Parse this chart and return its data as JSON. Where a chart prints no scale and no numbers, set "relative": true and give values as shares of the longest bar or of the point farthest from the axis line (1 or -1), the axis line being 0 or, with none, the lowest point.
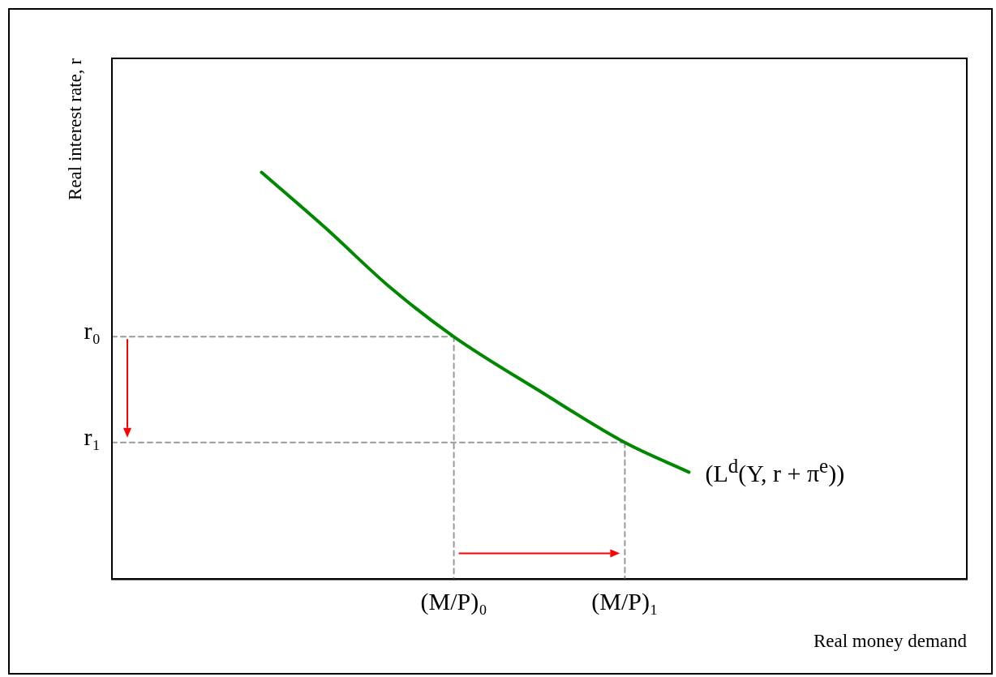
{
  "chart_data": {
    "type": "line",
    "relative": true,
    "xlabel": "Real money demand",
    "ylabel": "Real interest rate, r",
    "categories": [
      null,
      null,
      null,
      null,
      null,
      null,
      null,
      null,
      null,
      null,
      null,
      null,
      null,
      null,
      null,
      null,
      "(M/P)₀",
      null,
      null,
      null,
      null,
      null,
      null,
      null,
      "(M/P)₁",
      null,
      null,
      null,
      null,
      null,
      null,
      null,
      null,
      null,
      null,
      null,
      null,
      null,
      null,
      null,
      null
    ],
    "grid": false,
    "legend": false,
    "marker": "none",
    "series": [
      {
        "color": "#008800",
        "line_style": "solid",
        "values": [
          null,
          null,
          null,
          null,
          null,
          null,
          null,
          1,
          null,
          null,
          0.863,
          null,
          null,
          0.718,
          null,
          null,
          0.596,
          null,
          null,
          null,
          0.463,
          null,
          null,
          null,
          0.336,
          null,
          null,
          0.263,
          null,
          null,
          null,
          null,
          null,
          null,
          null,
          null,
          null,
          null,
          null,
          null,
          null
        ]
      },
      {
        "color": "#999999",
        "line_style": "dashed",
        "values": [
          0.596,
          0.596,
          0.596,
          0.596,
          0.596,
          0.596,
          0.596,
          0.596,
          0.596,
          0.596,
          0.596,
          0.596,
          0.596,
          0.596,
          0.596,
          0.596,
          0.596,
          null,
          null,
          null,
          null,
          null,
          null,
          null,
          null,
          null,
          null,
          null,
          null,
          null,
          null,
          null,
          null,
          null,
          null,
          null,
          null,
          null,
          null,
          null,
          null
        ]
      },
      {
        "color": "#999999",
        "line_style": "dashed",
        "values": [
          0.336,
          0.336,
          0.336,
          0.336,
          0.336,
          0.336,
          0.336,
          0.336,
          0.336,
          0.336,
          0.336,
          0.336,
          0.336,
          0.336,
          0.336,
          0.336,
          0.336,
          0.336,
          0.336,
          0.336,
          0.336,
          0.336,
          0.336,
          0.336,
          0.336,
          null,
          null,
          null,
          null,
          null,
          null,
          null,
          null,
          null,
          null,
          null,
          null,
          null,
          null,
          null,
          null
        ]
      },
      {
        "color": "#999999",
        "line_style": "dashed",
        "x": [
          "(M/P)₀",
          "(M/P)₀"
        ],
        "values": [
          0.596,
          0
        ]
      },
      {
        "color": "#999999",
        "line_style": "dashed",
        "x": [
          "(M/P)₁",
          "(M/P)₁"
        ],
        "values": [
          0.336,
          0
        ]
      }
    ],
    "annotations": [
      "r₀",
      "r₁",
      "(L$^{d}$(Y, r + π$^{e}$))"
    ]
  }
}
